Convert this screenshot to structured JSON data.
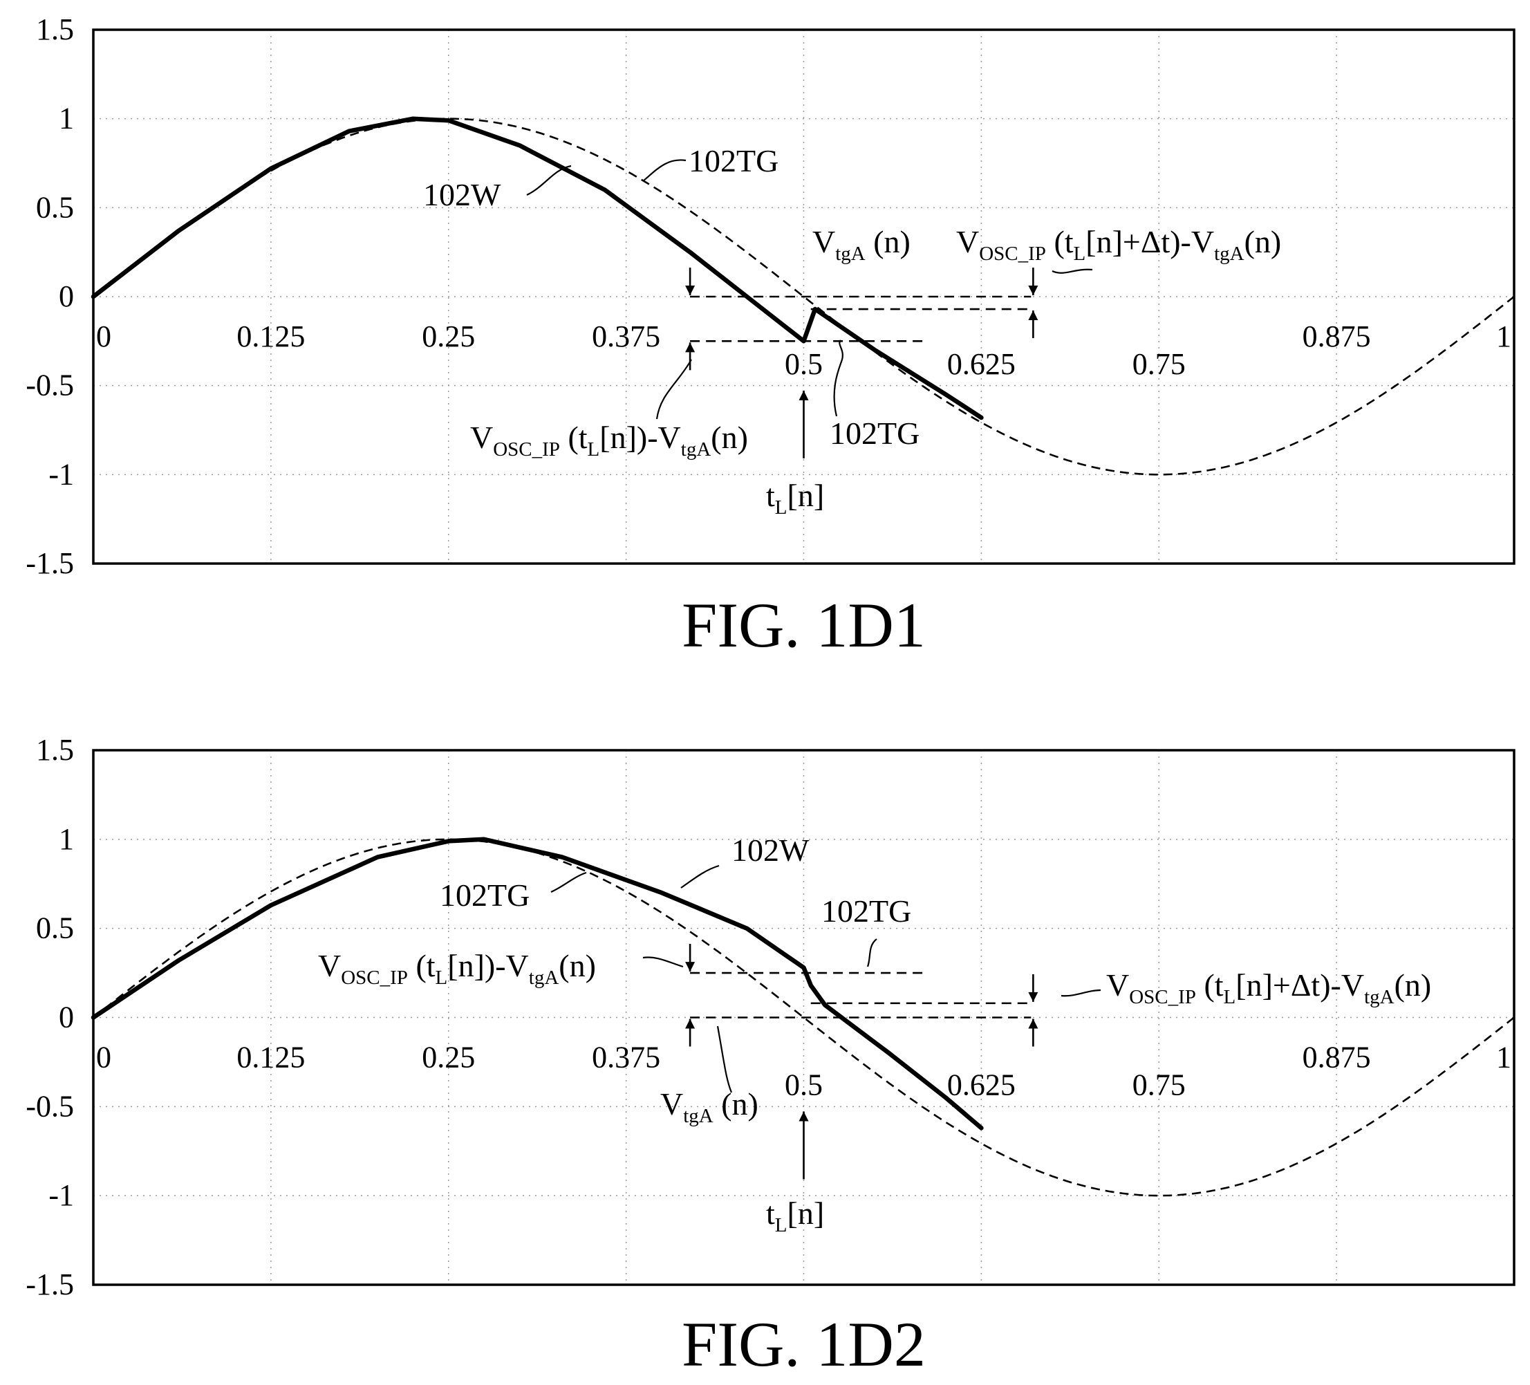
{
  "charts": [
    {
      "caption": "FIG. 1D1",
      "labels": [
        {
          "id": "w",
          "text": "102W"
        },
        {
          "id": "tg_top",
          "text": "102TG"
        },
        {
          "id": "tg_bottom",
          "text": "102TG"
        },
        {
          "id": "vtga",
          "text": "V",
          "sub": "tgA",
          "tail": " (n)"
        },
        {
          "id": "vosc_dt",
          "text": "V",
          "sub": "OSC_IP",
          "mid": " (t",
          "sub2": "L",
          "mid2": "[n]+Δt)-V",
          "sub3": "tgA",
          "tail": "(n)"
        },
        {
          "id": "vosc",
          "text": "V",
          "sub": "OSC_IP",
          "mid": " (t",
          "sub2": "L",
          "mid2": "[n])-V",
          "sub3": "tgA",
          "tail": "(n)"
        },
        {
          "id": "tl",
          "text": "t",
          "sub": "L",
          "tail": "[n]"
        }
      ]
    },
    {
      "caption": "FIG. 1D2",
      "labels": [
        {
          "id": "w",
          "text": "102W"
        },
        {
          "id": "tg_left",
          "text": "102TG"
        },
        {
          "id": "tg_right",
          "text": "102TG"
        },
        {
          "id": "vosc",
          "text": "V",
          "sub": "OSC_IP",
          "mid": " (t",
          "sub2": "L",
          "mid2": "[n])-V",
          "sub3": "tgA",
          "tail": "(n)"
        },
        {
          "id": "vosc_dt",
          "text": "V",
          "sub": "OSC_IP",
          "mid": " (t",
          "sub2": "L",
          "mid2": "[n]+Δt)-V",
          "sub3": "tgA",
          "tail": "(n)"
        },
        {
          "id": "vtga",
          "text": "V",
          "sub": "tgA",
          "tail": " (n)"
        },
        {
          "id": "tl",
          "text": "t",
          "sub": "L",
          "tail": "[n]"
        }
      ]
    }
  ],
  "chart_data": [
    {
      "type": "line",
      "title": "FIG. 1D1",
      "xlim": [
        0,
        1
      ],
      "ylim": [
        -1.5,
        1.5
      ],
      "x_ticks": [
        "0",
        "0.125",
        "0.25",
        "0.375",
        "0.5",
        "0.625",
        "0.75",
        "0.875",
        "1"
      ],
      "y_ticks": [
        "1.5",
        "1",
        "0.5",
        "0",
        "-0.5",
        "-1",
        "-1.5"
      ],
      "grid": true,
      "series": [
        {
          "name": "102TG",
          "style": "dashed",
          "function": "sin(2*pi*x)",
          "x": [
            0,
            0.125,
            0.25,
            0.375,
            0.5,
            0.625,
            0.75,
            0.875,
            1
          ],
          "y": [
            0,
            0.707,
            1,
            0.707,
            0,
            -0.707,
            -1,
            -0.707,
            0
          ]
        },
        {
          "name": "102W",
          "style": "solid-thick",
          "x": [
            0,
            0.06,
            0.125,
            0.18,
            0.225,
            0.25,
            0.3,
            0.36,
            0.42,
            0.46,
            0.5,
            0.508,
            0.55,
            0.6,
            0.625
          ],
          "y": [
            0,
            0.37,
            0.72,
            0.93,
            1.0,
            0.99,
            0.85,
            0.6,
            0.25,
            0.0,
            -0.25,
            -0.07,
            -0.3,
            -0.55,
            -0.68
          ]
        }
      ],
      "annotations": {
        "t_L_n": 0.5,
        "V_tgA_n": 0,
        "V_OSC_IP_tL_minus_VtgA": -0.25,
        "V_OSC_IP_tL_dt_minus_VtgA": -0.07
      }
    },
    {
      "type": "line",
      "title": "FIG. 1D2",
      "xlim": [
        0,
        1
      ],
      "ylim": [
        -1.5,
        1.5
      ],
      "x_ticks": [
        "0",
        "0.125",
        "0.25",
        "0.375",
        "0.5",
        "0.625",
        "0.75",
        "0.875",
        "1"
      ],
      "y_ticks": [
        "1.5",
        "1",
        "0.5",
        "0",
        "-0.5",
        "-1",
        "-1.5"
      ],
      "grid": true,
      "series": [
        {
          "name": "102TG",
          "style": "dashed",
          "function": "sin(2*pi*x)",
          "x": [
            0,
            0.125,
            0.25,
            0.375,
            0.5,
            0.625,
            0.75,
            0.875,
            1
          ],
          "y": [
            0,
            0.707,
            1,
            0.707,
            0,
            -0.707,
            -1,
            -0.707,
            0
          ]
        },
        {
          "name": "102W",
          "style": "solid-thick",
          "x": [
            0,
            0.06,
            0.125,
            0.2,
            0.25,
            0.275,
            0.33,
            0.4,
            0.46,
            0.5,
            0.505,
            0.515,
            0.56,
            0.6,
            0.625
          ],
          "y": [
            0,
            0.32,
            0.63,
            0.9,
            0.99,
            1.0,
            0.9,
            0.7,
            0.5,
            0.28,
            0.18,
            0.07,
            -0.2,
            -0.45,
            -0.62
          ]
        }
      ],
      "annotations": {
        "t_L_n": 0.5,
        "V_tgA_n": 0,
        "V_OSC_IP_tL_minus_VtgA": 0.25,
        "V_OSC_IP_tL_dt_minus_VtgA": 0.08
      }
    }
  ]
}
